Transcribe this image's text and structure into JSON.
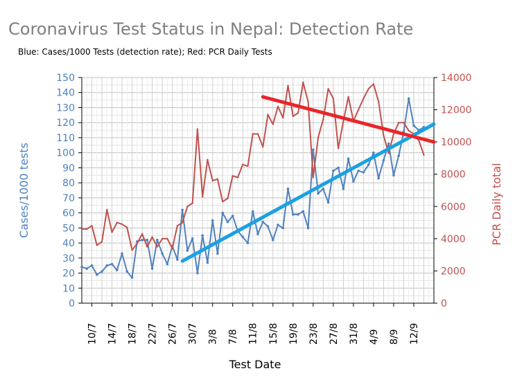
{
  "chart_data": {
    "type": "line",
    "title": "Coronavirus Test Status in Nepal: Detection Rate",
    "subtitle": "Blue: Cases/1000 Tests (detection rate); Red: PCR Daily Tests",
    "xlabel": "Test Date",
    "ylabel": "Cases/1000 tests",
    "y2label": "PCR Daily total",
    "ylim": [
      0,
      150
    ],
    "y2lim": [
      0,
      14000
    ],
    "yticks": [
      "0",
      "10",
      "20",
      "30",
      "40",
      "50",
      "60",
      "70",
      "80",
      "90",
      "100",
      "110",
      "120",
      "130",
      "140",
      "150"
    ],
    "y2ticks": [
      "0",
      "2000",
      "4000",
      "6000",
      "8000",
      "10000",
      "12000",
      "14000"
    ],
    "xticks": [
      "10/7",
      "14/7",
      "18/7",
      "22/7",
      "26/7",
      "30/7",
      "3/8",
      "7/8",
      "11/8",
      "15/8",
      "19/8",
      "23/8",
      "27/8",
      "31/8",
      "4/9",
      "8/9",
      "12/9"
    ],
    "x_start_day": 0,
    "series": [
      {
        "name": "Blue: Cases/1000 Tests (detection rate)",
        "color": "#4f81bd",
        "axis": "left",
        "values": [
          24,
          23,
          25,
          19,
          21,
          25,
          26,
          22,
          33,
          21,
          17,
          41,
          42,
          42,
          23,
          42,
          33,
          26,
          38,
          29,
          62,
          35,
          43,
          20,
          45,
          27,
          55,
          33,
          60,
          54,
          58,
          48,
          44,
          40,
          61,
          46,
          54,
          51,
          42,
          52,
          50,
          76,
          59,
          59,
          61,
          50,
          102,
          73,
          76,
          67,
          88,
          90,
          76,
          96,
          81,
          88,
          87,
          92,
          100,
          83,
          95,
          106,
          85,
          98,
          114,
          136,
          118,
          115,
          117
        ]
      },
      {
        "name": "Red: PCR Daily Tests",
        "color": "#c0504d",
        "axis": "right",
        "values": [
          4600,
          4600,
          4800,
          3600,
          3800,
          5800,
          4400,
          5000,
          4900,
          4700,
          3300,
          3700,
          4300,
          3500,
          4100,
          3500,
          4000,
          4000,
          3400,
          4800,
          5000,
          6000,
          6200,
          10800,
          6600,
          8900,
          7600,
          7700,
          6300,
          6500,
          7900,
          7800,
          8600,
          8500,
          10500,
          10500,
          9700,
          11700,
          11100,
          12200,
          11500,
          13500,
          11600,
          11800,
          13700,
          12500,
          7800,
          10300,
          11400,
          13300,
          12700,
          9600,
          11300,
          12800,
          11300,
          12000,
          12700,
          13300,
          13600,
          12500,
          10400,
          9300,
          10500,
          11200,
          11200,
          10700,
          10500,
          10100,
          9200
        ]
      }
    ],
    "trendlines": [
      {
        "name": "blue-trend",
        "color": "#1ba1e2",
        "axis": "left",
        "x": [
          20,
          70
        ],
        "y": [
          28,
          119
        ]
      },
      {
        "name": "red-trend",
        "color": "#e8262a",
        "axis": "right",
        "x": [
          36,
          70
        ],
        "y": [
          12800,
          10000
        ]
      }
    ],
    "grid": true
  },
  "colors": {
    "left_axis": "#4f81bd",
    "right_axis": "#c0504d",
    "title": "#7f7f7f"
  }
}
